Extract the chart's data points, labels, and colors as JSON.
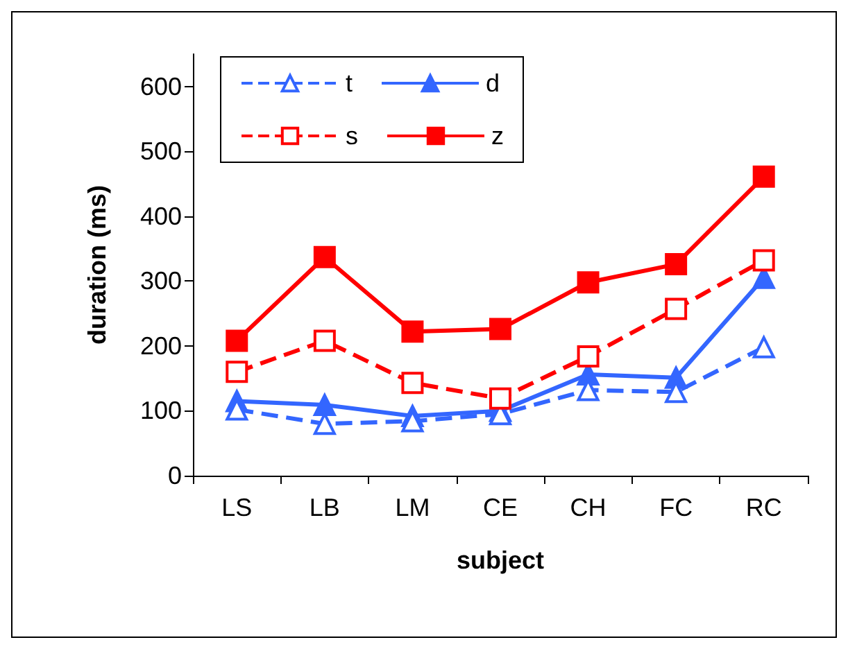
{
  "chart_data": {
    "type": "line",
    "xlabel": "subject",
    "ylabel": "duration (ms)",
    "categories": [
      "LS",
      "LB",
      "LM",
      "CE",
      "CH",
      "FC",
      "RC"
    ],
    "series": [
      {
        "name": "t",
        "color": "#3366ff",
        "line_style": "dashed",
        "marker": "triangle",
        "values": [
          102,
          80,
          84,
          95,
          132,
          129,
          198
        ]
      },
      {
        "name": "d",
        "color": "#3366ff",
        "line_style": "solid",
        "marker": "triangle",
        "values": [
          115,
          109,
          92,
          100,
          156,
          151,
          305
        ]
      },
      {
        "name": "s",
        "color": "#ff0000",
        "line_style": "dashed",
        "marker": "square",
        "values": [
          160,
          208,
          143,
          119,
          184,
          257,
          332
        ]
      },
      {
        "name": "z",
        "color": "#ff0000",
        "line_style": "solid",
        "marker": "square",
        "values": [
          208,
          337,
          222,
          226,
          298,
          326,
          461
        ]
      }
    ],
    "ylim": [
      0,
      650
    ],
    "yticks": [
      0,
      100,
      200,
      300,
      400,
      500,
      600
    ],
    "grid": false,
    "legend": "top left"
  }
}
